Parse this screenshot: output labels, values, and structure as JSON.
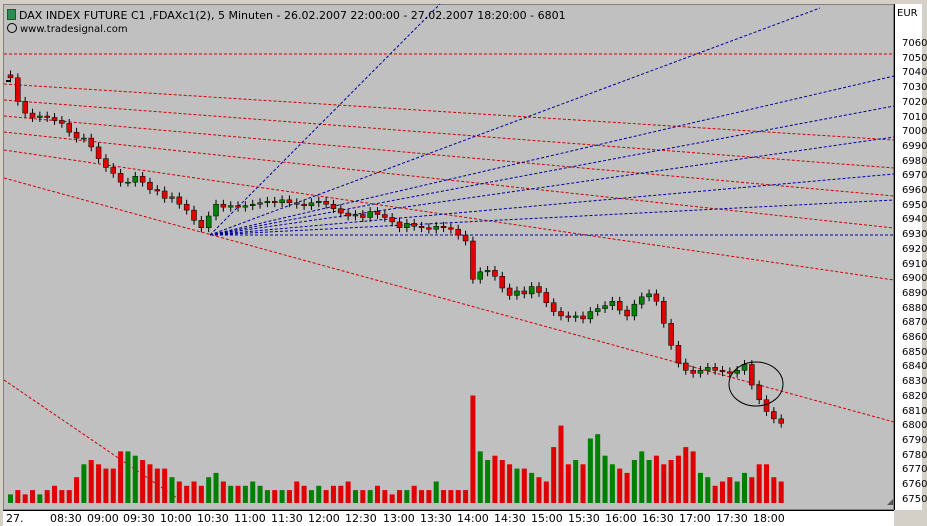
{
  "header": {
    "title": "DAX INDEX FUTURE C1 ,FDAXc1(2), 5 Minuten - 26.02.2007 22:00:00 - 27.02.2007 18:20:00 - 6801",
    "brand": "www.tradesignal.com"
  },
  "colors": {
    "up": "#008000",
    "down": "#e00000",
    "fan": "#0000a0",
    "channel": "#d00000",
    "background": "#c0c0c0"
  },
  "chart_data": {
    "type": "candlestick",
    "unit": "EUR",
    "ylim": [
      6747,
      7073
    ],
    "price_ticks": [
      7060,
      7050,
      7040,
      7030,
      7020,
      7010,
      7000,
      6990,
      6980,
      6970,
      6960,
      6950,
      6940,
      6930,
      6920,
      6910,
      6900,
      6890,
      6880,
      6870,
      6860,
      6850,
      6840,
      6830,
      6820,
      6810,
      6800,
      6790,
      6780,
      6770,
      6760,
      6750
    ],
    "price_tick_labels": [
      "7060",
      "7050",
      "7040",
      "7030",
      "7020",
      "7010",
      "7000",
      "6990",
      "6980",
      "6970",
      "6960",
      "6950",
      "6940",
      "6930",
      "6920",
      "6910",
      "6900",
      "6890",
      "6880",
      "6870",
      "6860",
      "6850",
      "6840",
      "6830",
      "6820",
      "6810",
      "6800",
      "6790",
      "6780",
      "6770",
      "6760",
      "6750"
    ],
    "time_labels": [
      "27.",
      "08:30",
      "09:00",
      "09:30",
      "10:00",
      "10:30",
      "11:00",
      "11:30",
      "12:00",
      "12:30",
      "13:00",
      "13:30",
      "14:00",
      "14:30",
      "15:00",
      "15:30",
      "16:00",
      "16:30",
      "17:00",
      "17:30",
      "18:00"
    ],
    "closes": [
      7037,
      7021,
      7013,
      7010,
      7011,
      7010,
      7008,
      7006,
      7000,
      6996,
      6996,
      6990,
      6982,
      6976,
      6972,
      6966,
      6966,
      6970,
      6966,
      6961,
      6960,
      6955,
      6956,
      6951,
      6947,
      6940,
      6935,
      6943,
      6951,
      6949,
      6950,
      6949,
      6950,
      6951,
      6952,
      6953,
      6952,
      6954,
      6952,
      6951,
      6950,
      6952,
      6953,
      6951,
      6948,
      6945,
      6943,
      6944,
      6942,
      6946,
      6944,
      6942,
      6939,
      6935,
      6938,
      6936,
      6935,
      6934,
      6936,
      6935,
      6934,
      6930,
      6926,
      6900,
      6905,
      6906,
      6902,
      6894,
      6889,
      6892,
      6890,
      6895,
      6891,
      6884,
      6878,
      6875,
      6874,
      6875,
      6873,
      6878,
      6880,
      6882,
      6885,
      6879,
      6875,
      6883,
      6888,
      6890,
      6885,
      6870,
      6855,
      6843,
      6838,
      6836,
      6838,
      6840,
      6838,
      6837,
      6836,
      6838,
      6842,
      6828,
      6818,
      6810,
      6805,
      6802
    ],
    "volumes": [
      2,
      3,
      2,
      3,
      2,
      3,
      4,
      3,
      3,
      6,
      9,
      10,
      9,
      8,
      8,
      12,
      12,
      11,
      10,
      9,
      8,
      8,
      6,
      5,
      4,
      5,
      4,
      6,
      7,
      5,
      4,
      4,
      4,
      5,
      4,
      3,
      3,
      3,
      3,
      5,
      4,
      3,
      4,
      3,
      4,
      4,
      5,
      3,
      3,
      3,
      4,
      3,
      2,
      3,
      3,
      4,
      3,
      3,
      5,
      3,
      3,
      3,
      3,
      25,
      12,
      10,
      11,
      10,
      9,
      8,
      8,
      7,
      6,
      5,
      13,
      18,
      9,
      10,
      9,
      15,
      16,
      11,
      9,
      8,
      7,
      10,
      12,
      10,
      11,
      9,
      10,
      11,
      13,
      12,
      7,
      6,
      4,
      5,
      6,
      5,
      7,
      6,
      9,
      9,
      6,
      5
    ],
    "annotations": [
      "regression channel lines",
      "fan lines",
      "highlight circle"
    ]
  }
}
